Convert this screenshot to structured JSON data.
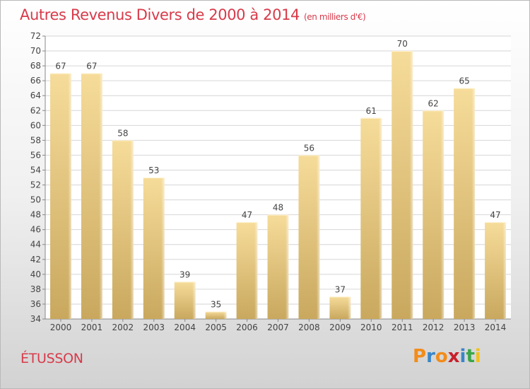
{
  "title": "Autres Revenus Divers de 2000 à 2014",
  "title_unit": "(en milliers d'€)",
  "location": "ÉTUSSON",
  "brand": {
    "letters": [
      "P",
      "r",
      "o",
      "x",
      "i",
      "t",
      "i"
    ],
    "colors": [
      "#f28c1a",
      "#3a86c8",
      "#f28c1a",
      "#c8202c",
      "#3a86c8",
      "#3aa648",
      "#f2c01a"
    ]
  },
  "colors": {
    "title": "#d83a4a",
    "bar_light": "#f6dc9a",
    "bar_dark": "#c9a85e",
    "grid": "#d6d6d6"
  },
  "chart_data": {
    "type": "bar",
    "categories": [
      "2000",
      "2001",
      "2002",
      "2003",
      "2004",
      "2005",
      "2006",
      "2007",
      "2008",
      "2009",
      "2010",
      "2011",
      "2012",
      "2013",
      "2014"
    ],
    "values": [
      67,
      67,
      58,
      53,
      39,
      35,
      47,
      48,
      56,
      37,
      61,
      70,
      62,
      65,
      47
    ],
    "ylim": [
      34,
      72
    ],
    "yticks": [
      34,
      36,
      38,
      40,
      42,
      44,
      46,
      48,
      50,
      52,
      54,
      56,
      58,
      60,
      62,
      64,
      66,
      68,
      70,
      72
    ],
    "grid": true,
    "data_labels": true
  }
}
